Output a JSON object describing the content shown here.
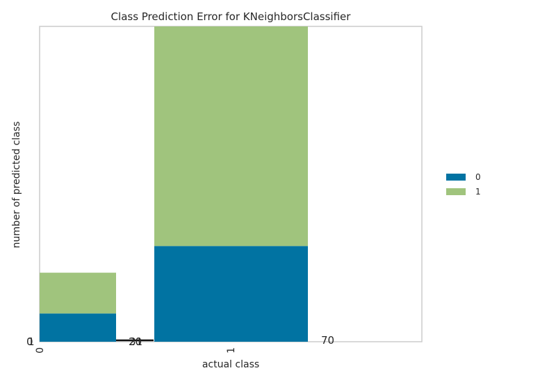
{
  "chart_data": {
    "type": "bar",
    "stacked": true,
    "title": "Class Prediction Error for KNeighborsClassifier",
    "xlabel": "actual class",
    "ylabel": "number of predicted class",
    "categories": [
      "0",
      "1"
    ],
    "series": [
      {
        "name": "0",
        "color": "#0173a2",
        "values": [
          18,
          61
        ]
      },
      {
        "name": "1",
        "color": "#a0c47d",
        "values": [
          26,
          140
        ]
      }
    ],
    "ylim": [
      0,
      201
    ],
    "grid": false,
    "legend_position": "right",
    "stray_labels": {
      "left_axis": [
        "1",
        "0"
      ],
      "between_bars": [
        "20",
        "31"
      ],
      "right_of_bars": "70"
    }
  }
}
